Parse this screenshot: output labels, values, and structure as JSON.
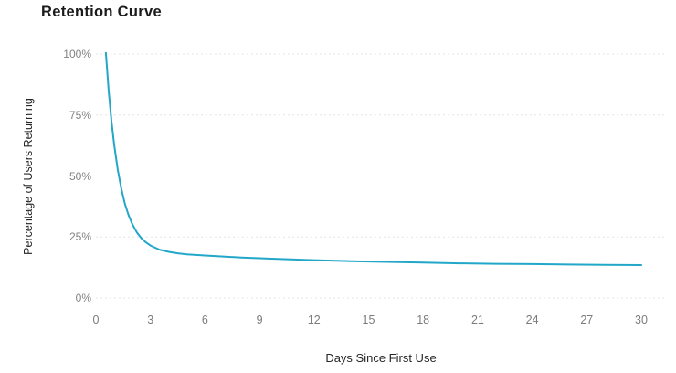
{
  "chart_data": {
    "type": "line",
    "title": "Retention Curve",
    "xlabel": "Days Since First Use",
    "ylabel": "Percentage of Users Returning",
    "xlim": [
      0,
      30
    ],
    "ylim": [
      0,
      100
    ],
    "x_ticks": [
      "0",
      "3",
      "6",
      "9",
      "12",
      "15",
      "18",
      "21",
      "24",
      "27",
      "30"
    ],
    "x_tick_values": [
      0,
      3,
      6,
      9,
      12,
      15,
      18,
      21,
      24,
      27,
      30
    ],
    "y_ticks": [
      "0%",
      "25%",
      "50%",
      "75%",
      "100%"
    ],
    "y_tick_values": [
      0,
      25,
      50,
      75,
      100
    ],
    "grid": "horizontal-dashed",
    "grid_color": "#e4e4e4",
    "legend": "none",
    "background_color": "#ffffff",
    "title_color": "#1b1b1b",
    "axis_title_color": "#262626",
    "tick_label_color": "#828282",
    "series": [
      {
        "name": "Percentage of Users Returning",
        "color": "#22a7c9",
        "x": [
          0.55,
          0.7,
          0.85,
          1,
          1.2,
          1.4,
          1.6,
          1.8,
          2,
          2.25,
          2.5,
          2.75,
          3,
          3.5,
          4,
          4.5,
          5,
          6,
          7,
          8,
          9,
          10,
          12,
          14,
          16,
          18,
          20,
          22,
          24,
          26,
          28,
          30
        ],
        "y": [
          100.5,
          85.2,
          73.0,
          63.1,
          52.6,
          44.7,
          38.5,
          33.9,
          30.3,
          26.9,
          24.5,
          22.8,
          21.5,
          19.8,
          18.9,
          18.3,
          17.9,
          17.4,
          17.0,
          16.6,
          16.3,
          16.0,
          15.5,
          15.1,
          14.8,
          14.5,
          14.2,
          14.0,
          13.9,
          13.7,
          13.6,
          13.5
        ]
      }
    ]
  }
}
